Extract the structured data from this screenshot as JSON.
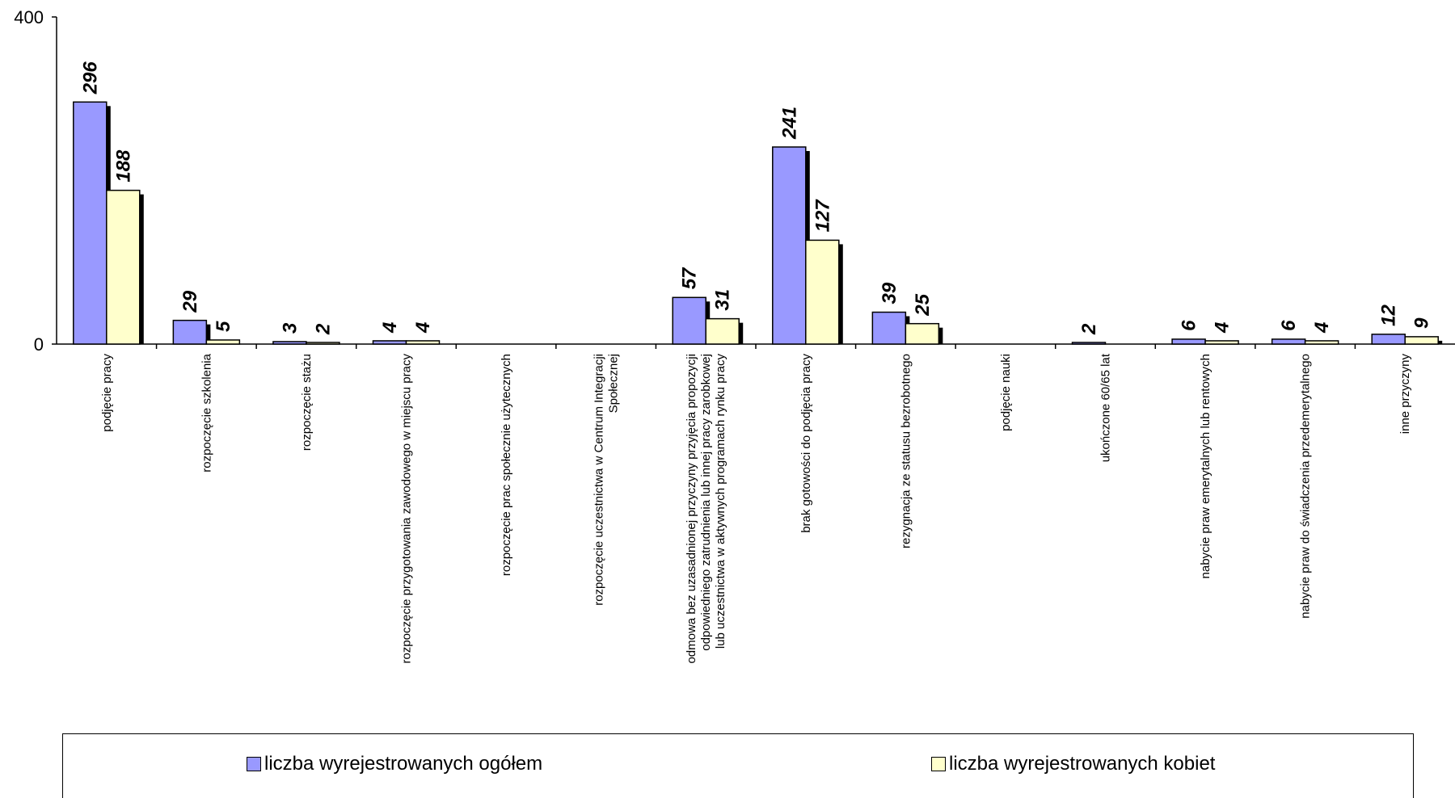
{
  "chart_data": {
    "type": "bar",
    "ylim": [
      0,
      400
    ],
    "yticks": [
      "0",
      "400"
    ],
    "categories": [
      [
        "podjęcie pracy"
      ],
      [
        "rozpoczęcie szkolenia"
      ],
      [
        "rozpoczęcie stażu"
      ],
      [
        "rozpoczęcie przygotowania zawodowego w miejscu pracy"
      ],
      [
        "rozpoczęcie prac społecznie użytecznych"
      ],
      [
        "rozpoczęcie uczestnictwa w Centrum Integracji",
        "Społecznej"
      ],
      [
        "odmowa bez uzasadnionej przyczyny przyjęcia propozycji",
        "odpowiedniego zatrudnienia lub innej pracy zarobkowej",
        "lub uczestnictwa w aktywnych programach rynku pracy"
      ],
      [
        "brak gotowości do podjęcia pracy"
      ],
      [
        "rezygnacja ze statusu bezrobotnego"
      ],
      [
        "podjęcie nauki"
      ],
      [
        "ukończone 60/65 lat"
      ],
      [
        "nabycie praw emerytalnych lub rentowych"
      ],
      [
        "nabycie praw do świadczenia przedemerytalnego"
      ],
      [
        "inne przyczyny"
      ]
    ],
    "series": [
      {
        "name": "liczba wyrejestrowanych ogółem",
        "color": "#9999ff",
        "values": [
          296,
          29,
          3,
          4,
          null,
          null,
          57,
          241,
          39,
          null,
          2,
          6,
          6,
          12
        ]
      },
      {
        "name": "liczba wyrejestrowanych kobiet",
        "color": "#ffffcc",
        "values": [
          188,
          5,
          2,
          4,
          null,
          null,
          31,
          127,
          25,
          null,
          null,
          4,
          4,
          9
        ]
      }
    ],
    "legend_position": "bottom"
  }
}
